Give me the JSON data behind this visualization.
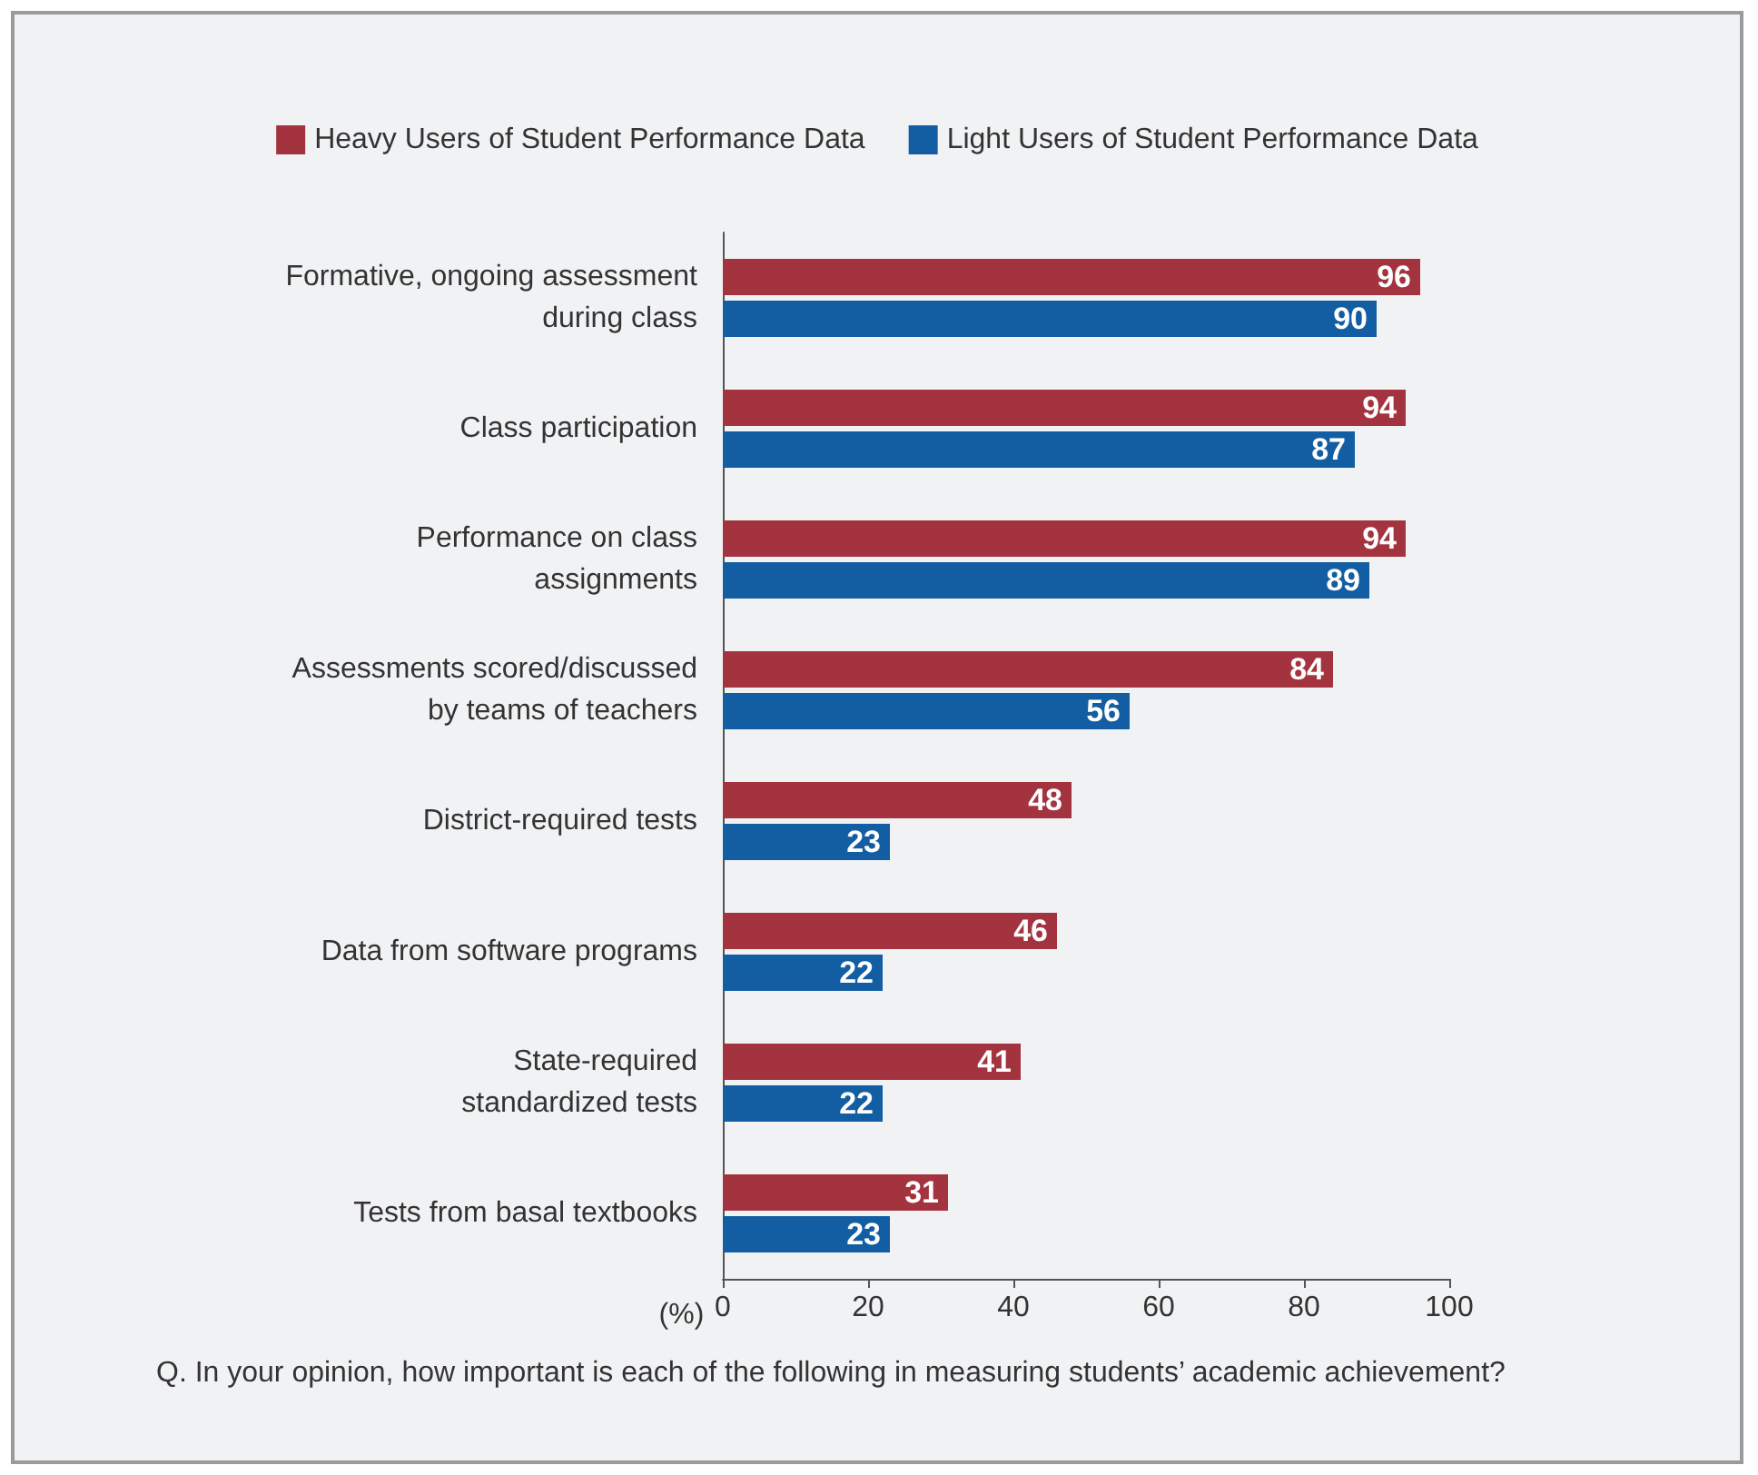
{
  "chart_data": {
    "type": "bar",
    "orientation": "horizontal",
    "categories": [
      "Formative, ongoing assessment\nduring class",
      "Class participation",
      "Performance on class\nassignments",
      "Assessments scored/discussed\nby teams of teachers",
      "District-required tests",
      "Data from software programs",
      "State-required\nstandardized tests",
      "Tests from basal textbooks"
    ],
    "series": [
      {
        "name": "Heavy Users of Student Performance Data",
        "color": "#a3343f",
        "values": [
          96,
          94,
          94,
          84,
          48,
          46,
          41,
          31
        ]
      },
      {
        "name": "Light Users of Student Performance Data",
        "color": "#135ea2",
        "values": [
          90,
          87,
          89,
          56,
          23,
          22,
          22,
          23
        ]
      }
    ],
    "xlim": [
      0,
      100
    ],
    "xticks": [
      0,
      20,
      40,
      60,
      80,
      100
    ],
    "xlabel": "(%)",
    "data_labels": true,
    "legend": "top",
    "grid": false,
    "annotations": [
      "Q. In your opinion, how important is each of the following in measuring students’ academic achievement?"
    ]
  }
}
